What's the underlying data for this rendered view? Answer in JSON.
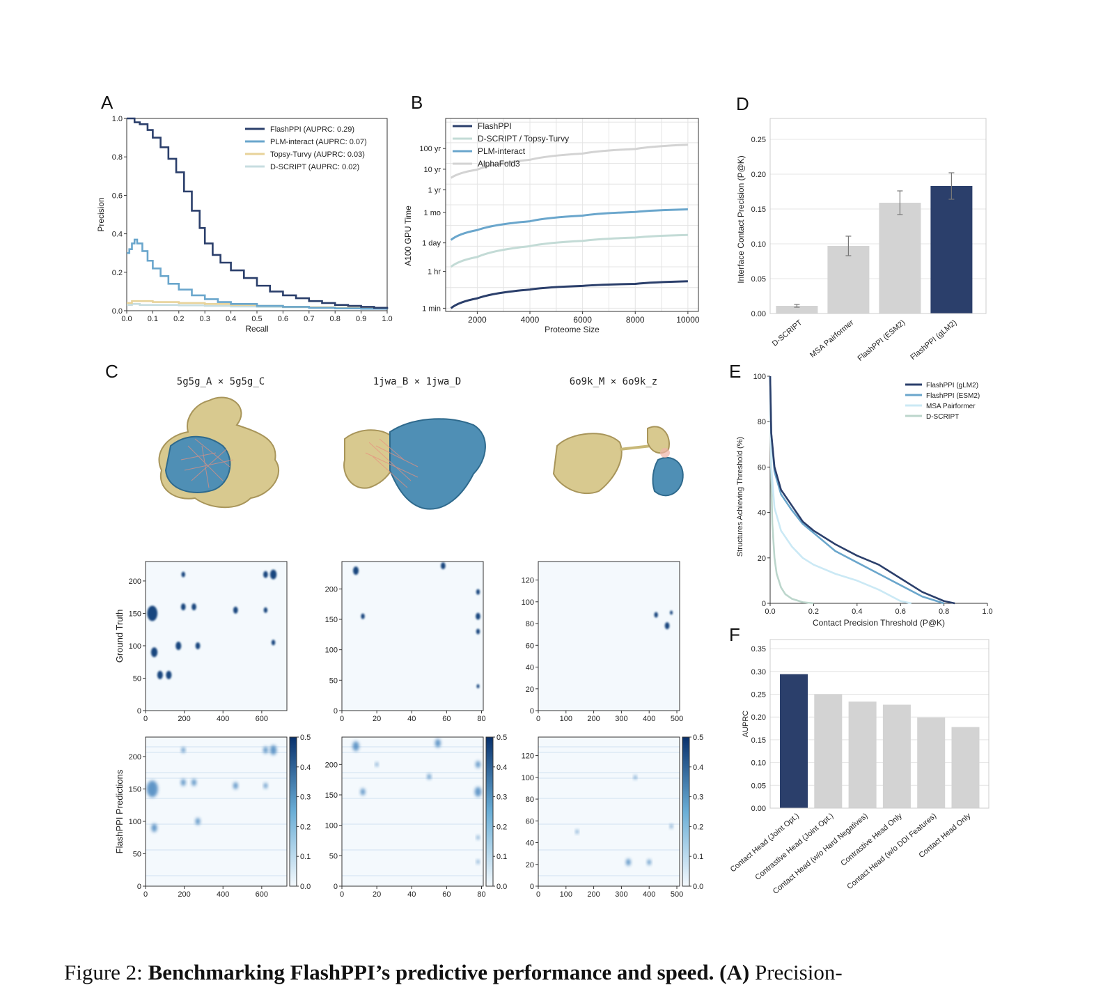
{
  "caption": {
    "prefix": "Figure 2:",
    "bold": "Benchmarking FlashPPI’s predictive performance and speed.",
    "bold_panel": "(A)",
    "rest": "Precision-"
  },
  "panels": {
    "A": "A",
    "B": "B",
    "C": "C",
    "D": "D",
    "E": "E",
    "F": "F"
  },
  "chart_data": [
    {
      "panel": "A",
      "type": "line",
      "xlabel": "Recall",
      "ylabel": "Precision",
      "xlim": [
        0,
        1
      ],
      "ylim": [
        0,
        1
      ],
      "x_ticks": [
        "0.0",
        "0.1",
        "0.2",
        "0.3",
        "0.4",
        "0.5",
        "0.6",
        "0.7",
        "0.8",
        "0.9",
        "1.0"
      ],
      "y_ticks": [
        "0.0",
        "0.2",
        "0.4",
        "0.6",
        "0.8",
        "1.0"
      ],
      "legend_position": "top-right",
      "series": [
        {
          "name": "FlashPPI (AUPRC: 0.29)",
          "color": "#2b3f6b",
          "x": [
            0,
            0.01,
            0.02,
            0.03,
            0.05,
            0.08,
            0.1,
            0.13,
            0.16,
            0.19,
            0.22,
            0.25,
            0.28,
            0.3,
            0.33,
            0.36,
            0.4,
            0.45,
            0.5,
            0.55,
            0.6,
            0.65,
            0.7,
            0.75,
            0.8,
            0.85,
            0.9,
            0.95,
            1.0
          ],
          "y": [
            1.0,
            1.0,
            1.0,
            0.98,
            0.97,
            0.94,
            0.9,
            0.85,
            0.79,
            0.72,
            0.62,
            0.52,
            0.43,
            0.35,
            0.29,
            0.25,
            0.21,
            0.17,
            0.13,
            0.1,
            0.08,
            0.065,
            0.05,
            0.04,
            0.03,
            0.025,
            0.02,
            0.015,
            0.01
          ]
        },
        {
          "name": "PLM-interact (AUPRC: 0.07)",
          "color": "#6aa6cc",
          "x": [
            0,
            0.01,
            0.02,
            0.03,
            0.04,
            0.06,
            0.08,
            0.1,
            0.13,
            0.16,
            0.2,
            0.25,
            0.3,
            0.35,
            0.4,
            0.5,
            0.6,
            0.7,
            0.8,
            0.9,
            1.0
          ],
          "y": [
            0.3,
            0.32,
            0.35,
            0.37,
            0.35,
            0.31,
            0.26,
            0.22,
            0.18,
            0.14,
            0.11,
            0.08,
            0.06,
            0.045,
            0.035,
            0.025,
            0.02,
            0.015,
            0.012,
            0.01,
            0.008
          ]
        },
        {
          "name": "Topsy-Turvy (AUPRC: 0.03)",
          "color": "#e8d39a",
          "x": [
            0,
            0.02,
            0.05,
            0.1,
            0.15,
            0.2,
            0.3,
            0.4,
            0.5,
            0.6,
            0.7,
            0.8,
            0.9,
            1.0
          ],
          "y": [
            0.04,
            0.05,
            0.05,
            0.045,
            0.045,
            0.04,
            0.035,
            0.03,
            0.025,
            0.02,
            0.018,
            0.015,
            0.012,
            0.01
          ]
        },
        {
          "name": "D-SCRIPT (AUPRC: 0.02)",
          "color": "#c7dde0",
          "x": [
            0,
            0.02,
            0.05,
            0.1,
            0.2,
            0.3,
            0.4,
            0.5,
            0.6,
            0.7,
            0.8,
            0.9,
            1.0
          ],
          "y": [
            0.03,
            0.035,
            0.03,
            0.03,
            0.028,
            0.025,
            0.022,
            0.02,
            0.018,
            0.016,
            0.014,
            0.012,
            0.01
          ]
        }
      ]
    },
    {
      "panel": "B",
      "type": "line",
      "xlabel": "Proteome Size",
      "ylabel": "A100 GPU Time",
      "xlim": [
        800,
        10400
      ],
      "x_ticks": [
        2000,
        4000,
        6000,
        8000,
        10000
      ],
      "y_scale": "log",
      "y_unit": "minutes",
      "y_ticks": [
        {
          "label": "1 min",
          "value": 1
        },
        {
          "label": "1 hr",
          "value": 60
        },
        {
          "label": "1 day",
          "value": 1440
        },
        {
          "label": "1 mo",
          "value": 43200
        },
        {
          "label": "1 yr",
          "value": 525600
        },
        {
          "label": "10 yr",
          "value": 5256000
        },
        {
          "label": "100 yr",
          "value": 52560000
        }
      ],
      "legend_position": "top-left",
      "series": [
        {
          "name": "FlashPPI",
          "color": "#2b3f6b",
          "x": [
            1000,
            2000,
            4000,
            6000,
            8000,
            10000
          ],
          "y": [
            1,
            3,
            8,
            12,
            15,
            20
          ]
        },
        {
          "name": "D-SCRIPT / Topsy-Turvy",
          "color": "#c3dbd6",
          "x": [
            1000,
            2000,
            4000,
            6000,
            8000,
            10000
          ],
          "y": [
            100,
            300,
            1000,
            1800,
            2600,
            3500
          ]
        },
        {
          "name": "PLM-interact",
          "color": "#6aa6cc",
          "x": [
            1000,
            2000,
            4000,
            6000,
            8000,
            10000
          ],
          "y": [
            2000,
            6000,
            16000,
            30000,
            45000,
            60000
          ]
        },
        {
          "name": "AlphaFold3",
          "color": "#d3d3d3",
          "x": [
            1000,
            2000,
            4000,
            6000,
            8000,
            10000
          ],
          "y": [
            2000000,
            5000000,
            15000000,
            30000000,
            50000000,
            80000000
          ]
        }
      ]
    },
    {
      "panel": "C",
      "type": "heatmap",
      "titles": [
        "5g5g_A × 5g5g_C",
        "1jwa_B × 1jwa_D",
        "6o9k_M × 6o9k_z"
      ],
      "row_labels": [
        "Ground Truth",
        "FlashPPI Predictions"
      ],
      "colorbar_ticks": [
        "0.0",
        "0.1",
        "0.2",
        "0.3",
        "0.4",
        "0.5"
      ],
      "maps": [
        {
          "xlim": [
            0,
            730
          ],
          "ylim": [
            0,
            230
          ],
          "x_ticks": [
            0,
            200,
            400,
            600
          ],
          "y_ticks": [
            0,
            50,
            100,
            150,
            200
          ],
          "gt_blobs": [
            [
              75,
              55,
              12
            ],
            [
              120,
              55,
              12
            ],
            [
              45,
              90,
              14
            ],
            [
              35,
              150,
              22
            ],
            [
              170,
              100,
              12
            ],
            [
              195,
              160,
              10
            ],
            [
              250,
              160,
              10
            ],
            [
              195,
              210,
              8
            ],
            [
              270,
              100,
              10
            ],
            [
              465,
              155,
              10
            ],
            [
              620,
              155,
              8
            ],
            [
              620,
              210,
              10
            ],
            [
              660,
              210,
              14
            ],
            [
              660,
              105,
              8
            ]
          ],
          "pred_blobs": [
            [
              35,
              150,
              24
            ],
            [
              45,
              90,
              12
            ],
            [
              195,
              160,
              10
            ],
            [
              250,
              160,
              10
            ],
            [
              195,
              210,
              8
            ],
            [
              270,
              100,
              10
            ],
            [
              465,
              155,
              10
            ],
            [
              620,
              155,
              8
            ],
            [
              620,
              210,
              10
            ],
            [
              660,
              210,
              14
            ]
          ]
        },
        {
          "xlim": [
            0,
            81
          ],
          "ylim": [
            0,
            245
          ],
          "x_ticks": [
            0,
            20,
            40,
            60,
            80
          ],
          "y_ticks": [
            0,
            50,
            100,
            150,
            200
          ],
          "gt_blobs": [
            [
              8,
              230,
              12
            ],
            [
              12,
              155,
              8
            ],
            [
              58,
              238,
              10
            ],
            [
              78,
              155,
              10
            ],
            [
              78,
              130,
              8
            ],
            [
              78,
              195,
              8
            ],
            [
              78,
              40,
              6
            ]
          ],
          "pred_blobs": [
            [
              8,
              230,
              14
            ],
            [
              12,
              155,
              10
            ],
            [
              55,
              235,
              12
            ],
            [
              78,
              155,
              14
            ],
            [
              78,
              200,
              10
            ],
            [
              20,
              200,
              6
            ],
            [
              50,
              180,
              8
            ],
            [
              78,
              80,
              6
            ],
            [
              78,
              40,
              6
            ]
          ]
        },
        {
          "xlim": [
            0,
            510
          ],
          "ylim": [
            0,
            137
          ],
          "x_ticks": [
            0,
            100,
            200,
            300,
            400,
            500
          ],
          "y_ticks": [
            0,
            20,
            40,
            60,
            80,
            100,
            120
          ],
          "gt_blobs": [
            [
              425,
              88,
              8
            ],
            [
              465,
              78,
              10
            ],
            [
              480,
              90,
              6
            ]
          ],
          "pred_blobs": [
            [
              140,
              50,
              6
            ],
            [
              325,
              22,
              10
            ],
            [
              400,
              22,
              8
            ],
            [
              350,
              100,
              6
            ],
            [
              480,
              55,
              6
            ]
          ]
        }
      ]
    },
    {
      "panel": "D",
      "type": "bar",
      "ylabel": "Interface Contact Precision (P@K)",
      "ylim": [
        0,
        0.28
      ],
      "y_ticks": [
        "0.00",
        "0.05",
        "0.10",
        "0.15",
        "0.20",
        "0.25"
      ],
      "categories": [
        "D-SCRIPT",
        "MSA Pairformer",
        "FlashPPI (ESM2)",
        "FlashPPI (gLM2)"
      ],
      "values": [
        0.011,
        0.097,
        0.159,
        0.183
      ],
      "errors": [
        0.002,
        0.014,
        0.017,
        0.019
      ],
      "colors": [
        "#d3d3d3",
        "#d3d3d3",
        "#d3d3d3",
        "#2b3f6b"
      ]
    },
    {
      "panel": "E",
      "type": "line",
      "xlabel": "Contact Precision Threshold (P@K)",
      "ylabel": "Structures Achieving Threshold (%)",
      "xlim": [
        0,
        1
      ],
      "ylim": [
        0,
        100
      ],
      "x_ticks": [
        "0.0",
        "0.2",
        "0.4",
        "0.6",
        "0.8",
        "1.0"
      ],
      "y_ticks": [
        "0",
        "20",
        "40",
        "60",
        "80",
        "100"
      ],
      "legend_position": "top-right",
      "series": [
        {
          "name": "FlashPPI (gLM2)",
          "color": "#2b3f6b",
          "x": [
            0,
            0.005,
            0.02,
            0.05,
            0.1,
            0.15,
            0.2,
            0.3,
            0.4,
            0.5,
            0.6,
            0.7,
            0.8,
            0.85
          ],
          "y": [
            100,
            75,
            60,
            50,
            43,
            36,
            32,
            26,
            21,
            17,
            11,
            5,
            1,
            0
          ]
        },
        {
          "name": "FlashPPI (ESM2)",
          "color": "#6aa6cc",
          "x": [
            0,
            0.005,
            0.02,
            0.05,
            0.1,
            0.15,
            0.2,
            0.3,
            0.4,
            0.5,
            0.6,
            0.7,
            0.8
          ],
          "y": [
            100,
            75,
            58,
            48,
            41,
            35,
            31,
            23,
            18,
            13,
            8,
            3,
            0
          ]
        },
        {
          "name": "MSA Pairformer",
          "color": "#cbe9f5",
          "x": [
            0,
            0.005,
            0.02,
            0.05,
            0.1,
            0.15,
            0.2,
            0.3,
            0.4,
            0.5,
            0.6,
            0.65
          ],
          "y": [
            100,
            60,
            42,
            32,
            25,
            20,
            17,
            13,
            10,
            6,
            1,
            0
          ]
        },
        {
          "name": "D-SCRIPT",
          "color": "#bcd6cc",
          "x": [
            0,
            0.005,
            0.01,
            0.02,
            0.03,
            0.05,
            0.07,
            0.1,
            0.15,
            0.2
          ],
          "y": [
            100,
            55,
            35,
            20,
            13,
            7,
            4,
            2,
            0.5,
            0
          ]
        }
      ]
    },
    {
      "panel": "F",
      "type": "bar",
      "ylabel": "AUPRC",
      "ylim": [
        0,
        0.37
      ],
      "y_ticks": [
        "0.00",
        "0.05",
        "0.10",
        "0.15",
        "0.20",
        "0.25",
        "0.30",
        "0.35"
      ],
      "categories": [
        "Contact Head (Joint Opt.)",
        "Contrastive Head (Joint Opt.)",
        "Contact Head (w/o Hard Negatives)",
        "Contrastive Head Only",
        "Contact Head (w/o DDI Features)",
        "Contact Head Only"
      ],
      "values": [
        0.294,
        0.25,
        0.234,
        0.227,
        0.199,
        0.178
      ],
      "colors": [
        "#2b3f6b",
        "#d3d3d3",
        "#d3d3d3",
        "#d3d3d3",
        "#d3d3d3",
        "#d3d3d3"
      ]
    }
  ]
}
